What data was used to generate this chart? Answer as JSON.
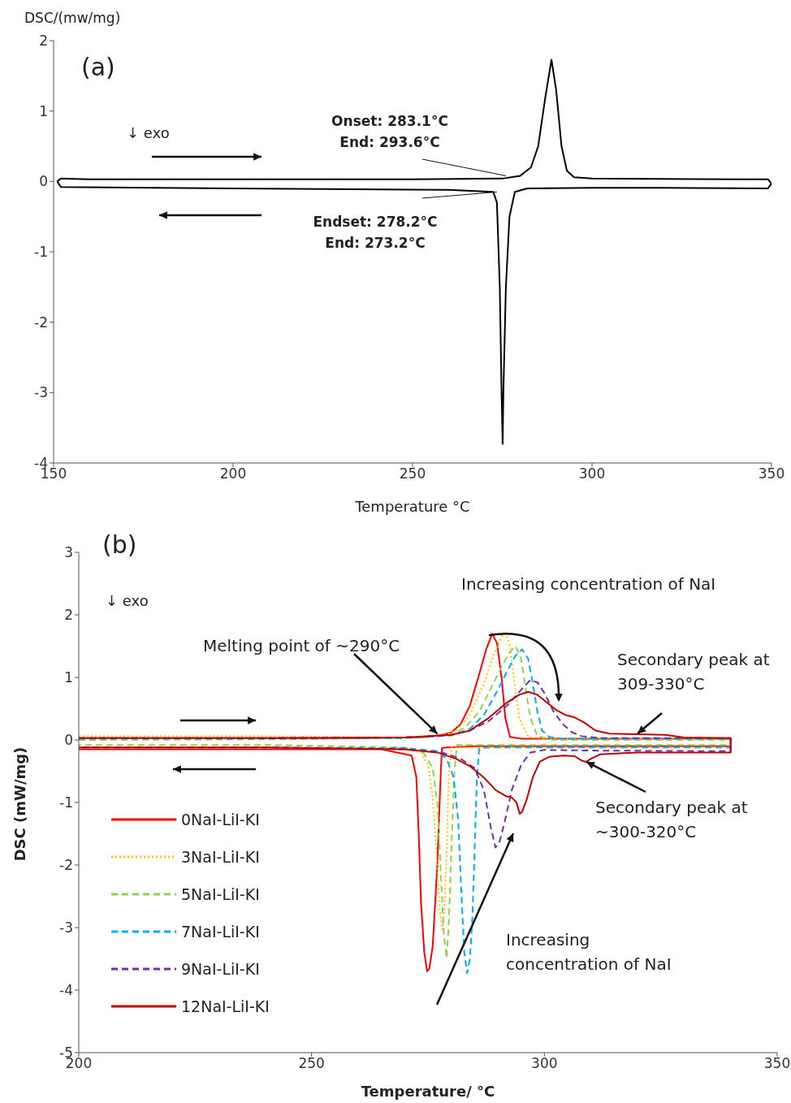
{
  "chart_data": [
    {
      "type": "line",
      "xlabel": "Temperature °C",
      "ylabel": "DSC/(mw/mg)",
      "xlim": [
        150,
        350
      ],
      "ylim": [
        -4,
        2
      ],
      "xticks": [
        150,
        200,
        250,
        300,
        350
      ],
      "yticks": [
        -4,
        -3,
        -2,
        -1,
        0,
        1,
        2
      ],
      "annotations": [
        "(a)",
        "↓ exo",
        "Onset: 283.1°C",
        {
          "text": "End: 293.6°C",
          "x": 276,
          "y": 0.08
        },
        {
          "text": "Endset: 278.2°C",
          "x": 273.5,
          "y": -0.15
        },
        "End: 273.2°C"
      ],
      "series": [
        {
          "color": "#000000",
          "x": [
            151,
            152,
            160,
            250,
            275,
            280,
            283,
            285,
            287,
            288.7,
            290,
            291.5,
            293,
            295,
            300,
            340,
            349,
            350
          ],
          "values": [
            0.0,
            0.04,
            0.03,
            0.03,
            0.04,
            0.08,
            0.2,
            0.5,
            1.2,
            1.73,
            1.3,
            0.5,
            0.15,
            0.06,
            0.04,
            0.03,
            0.03,
            -0.03
          ]
        },
        {
          "color": "#000000",
          "x": [
            350,
            349,
            320,
            300,
            282,
            278.5,
            277,
            276,
            275.3,
            275.1,
            274.8,
            274.3,
            273.5,
            272.5,
            260,
            200,
            152,
            151
          ],
          "values": [
            -0.03,
            -0.1,
            -0.09,
            -0.09,
            -0.1,
            -0.15,
            -0.5,
            -1.5,
            -3.0,
            -3.73,
            -3.0,
            -1.5,
            -0.3,
            -0.15,
            -0.12,
            -0.1,
            -0.08,
            0.0
          ]
        }
      ]
    },
    {
      "type": "line",
      "xlabel": "Temperature/ °C",
      "ylabel": "DSC (mW/mg)",
      "xlim": [
        200,
        350
      ],
      "ylim": [
        -5,
        3
      ],
      "xticks": [
        200,
        250,
        300,
        350
      ],
      "yticks": [
        -5,
        -4,
        -3,
        -2,
        -1,
        0,
        1,
        2,
        3
      ],
      "legend": "bottom left",
      "annotations": [
        "(b)",
        "↓ exo",
        "Increasing concentration of NaI",
        {
          "text": "Melting point of ~290°C",
          "x": 277,
          "y": 0.1
        },
        {
          "text": "Secondary peak at 309-330°C",
          "x": 320,
          "y": 0.1
        },
        {
          "text": "Secondary peak at ~300-320°C",
          "x": 309,
          "y": -0.35
        },
        "Increasing concentration of NaI"
      ],
      "series": [
        {
          "name": "0NaI-LiI-KI",
          "color": "#ff0000",
          "line_style": "solid",
          "x": [
            200,
            220,
            240,
            260,
            270,
            275,
            278,
            280,
            282,
            284,
            286,
            287.5,
            288.8,
            289.8,
            290.8,
            291.6,
            292.6,
            295,
            300,
            320,
            340,
            340,
            320,
            300,
            285,
            279,
            278,
            277.7,
            277,
            276,
            275.3,
            274.8,
            274.2,
            273.5,
            273,
            272.5,
            271.5,
            265,
            240,
            200
          ],
          "values": [
            0.03,
            0.03,
            0.03,
            0.03,
            0.04,
            0.05,
            0.08,
            0.12,
            0.25,
            0.55,
            1.05,
            1.45,
            1.7,
            1.55,
            1.0,
            0.35,
            0.05,
            0.02,
            0.02,
            0.02,
            0.02,
            -0.1,
            -0.1,
            -0.1,
            -0.1,
            -0.12,
            -0.13,
            -0.6,
            -2.0,
            -3.3,
            -3.65,
            -3.7,
            -3.4,
            -2.6,
            -1.5,
            -0.6,
            -0.25,
            -0.15,
            -0.15,
            -0.15
          ]
        },
        {
          "name": "3NaI-LiI-KI",
          "color": "#ffc000",
          "line_style": "dotted",
          "x": [
            200,
            240,
            270,
            278,
            281,
            284,
            287,
            289,
            290.5,
            291.6,
            292.6,
            293.6,
            294.6,
            296.5,
            300,
            340,
            340,
            300,
            285,
            280,
            279.5,
            279,
            278.5,
            278.1,
            277.5,
            276.8,
            276,
            275,
            273.5,
            270,
            240,
            200
          ],
          "values": [
            0.06,
            0.06,
            0.04,
            0.08,
            0.15,
            0.4,
            0.9,
            1.35,
            1.6,
            1.74,
            1.5,
            0.9,
            0.35,
            0.05,
            0.02,
            0.02,
            -0.12,
            -0.12,
            -0.12,
            -0.12,
            -0.5,
            -1.8,
            -2.7,
            -3.06,
            -2.7,
            -1.8,
            -0.9,
            -0.4,
            -0.2,
            -0.15,
            -0.12,
            -0.12
          ]
        },
        {
          "name": "5NaI-LiI-KI",
          "color": "#92d050",
          "line_style": "dashed",
          "x": [
            200,
            240,
            270,
            280,
            283,
            286,
            289,
            291,
            292.5,
            293.8,
            295,
            296,
            297,
            298.5,
            302,
            340,
            340,
            300,
            285,
            281.2,
            280.7,
            280,
            279.5,
            279,
            278.4,
            277.8,
            277,
            276,
            274,
            270,
            240,
            200
          ],
          "values": [
            0.0,
            0.01,
            0.03,
            0.08,
            0.2,
            0.45,
            0.9,
            1.2,
            1.4,
            1.5,
            1.3,
            0.8,
            0.35,
            0.06,
            0.0,
            0.0,
            -0.08,
            -0.08,
            -0.08,
            -0.08,
            -0.5,
            -1.8,
            -2.9,
            -3.49,
            -3.1,
            -2.2,
            -1.0,
            -0.45,
            -0.2,
            -0.12,
            -0.08,
            -0.08
          ]
        },
        {
          "name": "7NaI-LiI-KI",
          "color": "#00b0f0",
          "line_style": "dashed",
          "x": [
            200,
            240,
            270,
            280,
            284,
            287,
            290,
            292,
            293.8,
            295.2,
            296.5,
            297.5,
            298.5,
            299.5,
            301,
            304,
            340,
            340,
            300,
            288,
            286,
            285.5,
            285,
            284.5,
            284,
            283.4,
            282.8,
            282.2,
            281.5,
            280.5,
            279,
            277,
            270,
            240,
            200
          ],
          "values": [
            0.02,
            0.02,
            0.03,
            0.07,
            0.18,
            0.4,
            0.8,
            1.1,
            1.35,
            1.45,
            1.3,
            0.9,
            0.45,
            0.15,
            0.05,
            0.02,
            0.02,
            -0.12,
            -0.12,
            -0.12,
            -0.13,
            -0.6,
            -1.8,
            -2.9,
            -3.5,
            -3.73,
            -3.4,
            -2.5,
            -1.3,
            -0.6,
            -0.3,
            -0.18,
            -0.13,
            -0.12,
            -0.12
          ]
        },
        {
          "name": "9NaI-LiI-KI",
          "color": "#7030a0",
          "line_style": "dashed",
          "x": [
            200,
            240,
            270,
            280,
            284,
            288,
            292,
            295,
            297,
            298.5,
            300,
            302,
            304,
            306,
            308,
            312,
            340,
            340,
            310,
            300,
            297,
            295,
            293,
            291.5,
            290.3,
            289.5,
            288.5,
            287,
            285,
            282,
            278,
            270,
            240,
            200
          ],
          "values": [
            0.03,
            0.03,
            0.04,
            0.08,
            0.15,
            0.3,
            0.55,
            0.8,
            0.96,
            0.92,
            0.75,
            0.45,
            0.25,
            0.12,
            0.06,
            0.03,
            0.03,
            -0.18,
            -0.17,
            -0.16,
            -0.2,
            -0.4,
            -0.8,
            -1.3,
            -1.65,
            -1.72,
            -1.4,
            -0.8,
            -0.45,
            -0.3,
            -0.2,
            -0.15,
            -0.12,
            -0.12
          ]
        },
        {
          "name": "12NaI-LiI-KI",
          "color": "#c00000",
          "line_style": "solid",
          "x": [
            200,
            240,
            270,
            280,
            284,
            288,
            292,
            294.5,
            296.5,
            298.5,
            300.5,
            302.5,
            304.5,
            306.5,
            308.5,
            311,
            314,
            320,
            326,
            330,
            340,
            340,
            320,
            312,
            310,
            309,
            308,
            306.5,
            304,
            301,
            299,
            297.5,
            296.2,
            295.2,
            294.7,
            294,
            293,
            291.8,
            289.5,
            287,
            284,
            281,
            277,
            270,
            240,
            200
          ],
          "values": [
            0.03,
            0.03,
            0.04,
            0.08,
            0.15,
            0.35,
            0.6,
            0.72,
            0.77,
            0.72,
            0.6,
            0.48,
            0.4,
            0.36,
            0.28,
            0.15,
            0.1,
            0.09,
            0.08,
            0.04,
            0.03,
            -0.2,
            -0.2,
            -0.23,
            -0.3,
            -0.35,
            -0.33,
            -0.26,
            -0.25,
            -0.27,
            -0.35,
            -0.6,
            -0.95,
            -1.15,
            -1.18,
            -1.0,
            -0.92,
            -0.9,
            -0.8,
            -0.6,
            -0.42,
            -0.3,
            -0.2,
            -0.15,
            -0.12,
            -0.12
          ]
        }
      ]
    }
  ]
}
